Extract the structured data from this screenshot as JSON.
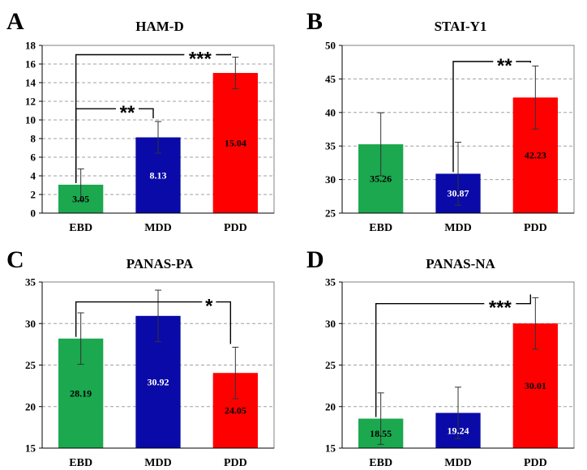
{
  "colors": {
    "EBD": "#1ba84f",
    "MDD": "#0a0aa8",
    "PDD": "#ff0000",
    "grid": "#a0a0a0",
    "frame": "#808080"
  },
  "chart_data": [
    {
      "panel": "A",
      "type": "bar",
      "title": "HAM-D",
      "categories": [
        "EBD",
        "MDD",
        "PDD"
      ],
      "values": [
        3.05,
        8.13,
        15.04
      ],
      "value_labels": [
        "3.05",
        "8.13",
        "15.04"
      ],
      "error": [
        1.7,
        1.7,
        1.7
      ],
      "ylim": [
        0,
        18
      ],
      "yticks": [
        0,
        2,
        4,
        6,
        8,
        10,
        12,
        14,
        16,
        18
      ],
      "grid": true,
      "significance": [
        {
          "from": "EBD",
          "to": "MDD",
          "label": "**",
          "y": 11.2
        },
        {
          "from": "EBD",
          "to": "PDD",
          "label": "***",
          "y": 17.0
        }
      ]
    },
    {
      "panel": "B",
      "type": "bar",
      "title": "STAI-Y1",
      "categories": [
        "EBD",
        "MDD",
        "PDD"
      ],
      "values": [
        35.26,
        30.87,
        42.23
      ],
      "value_labels": [
        "35.26",
        "30.87",
        "42.23"
      ],
      "error": [
        4.7,
        4.7,
        4.7
      ],
      "ylim": [
        25,
        50
      ],
      "yticks": [
        25,
        30,
        35,
        40,
        45,
        50
      ],
      "grid": true,
      "significance": [
        {
          "from": "MDD",
          "to": "PDD",
          "label": "**",
          "y": 47.6
        }
      ]
    },
    {
      "panel": "C",
      "type": "bar",
      "title": "PANAS-PA",
      "categories": [
        "EBD",
        "MDD",
        "PDD"
      ],
      "values": [
        28.19,
        30.92,
        24.05
      ],
      "value_labels": [
        "28.19",
        "30.92",
        "24.05"
      ],
      "error": [
        3.1,
        3.1,
        3.1
      ],
      "ylim": [
        15,
        35
      ],
      "yticks": [
        15,
        20,
        25,
        30,
        35
      ],
      "grid": true,
      "significance": [
        {
          "from": "EBD",
          "to": "PDD",
          "label": "*",
          "y": 32.6
        }
      ]
    },
    {
      "panel": "D",
      "type": "bar",
      "title": "PANAS-NA",
      "categories": [
        "EBD",
        "MDD",
        "PDD"
      ],
      "values": [
        18.55,
        19.24,
        30.01
      ],
      "value_labels": [
        "18.55",
        "19.24",
        "30.01"
      ],
      "error": [
        3.1,
        3.1,
        3.1
      ],
      "ylim": [
        15,
        35
      ],
      "yticks": [
        15,
        20,
        25,
        30,
        35
      ],
      "grid": true,
      "significance": [
        {
          "from": "EBD",
          "to": "PDD",
          "label": "***",
          "y": 32.4
        }
      ]
    }
  ]
}
